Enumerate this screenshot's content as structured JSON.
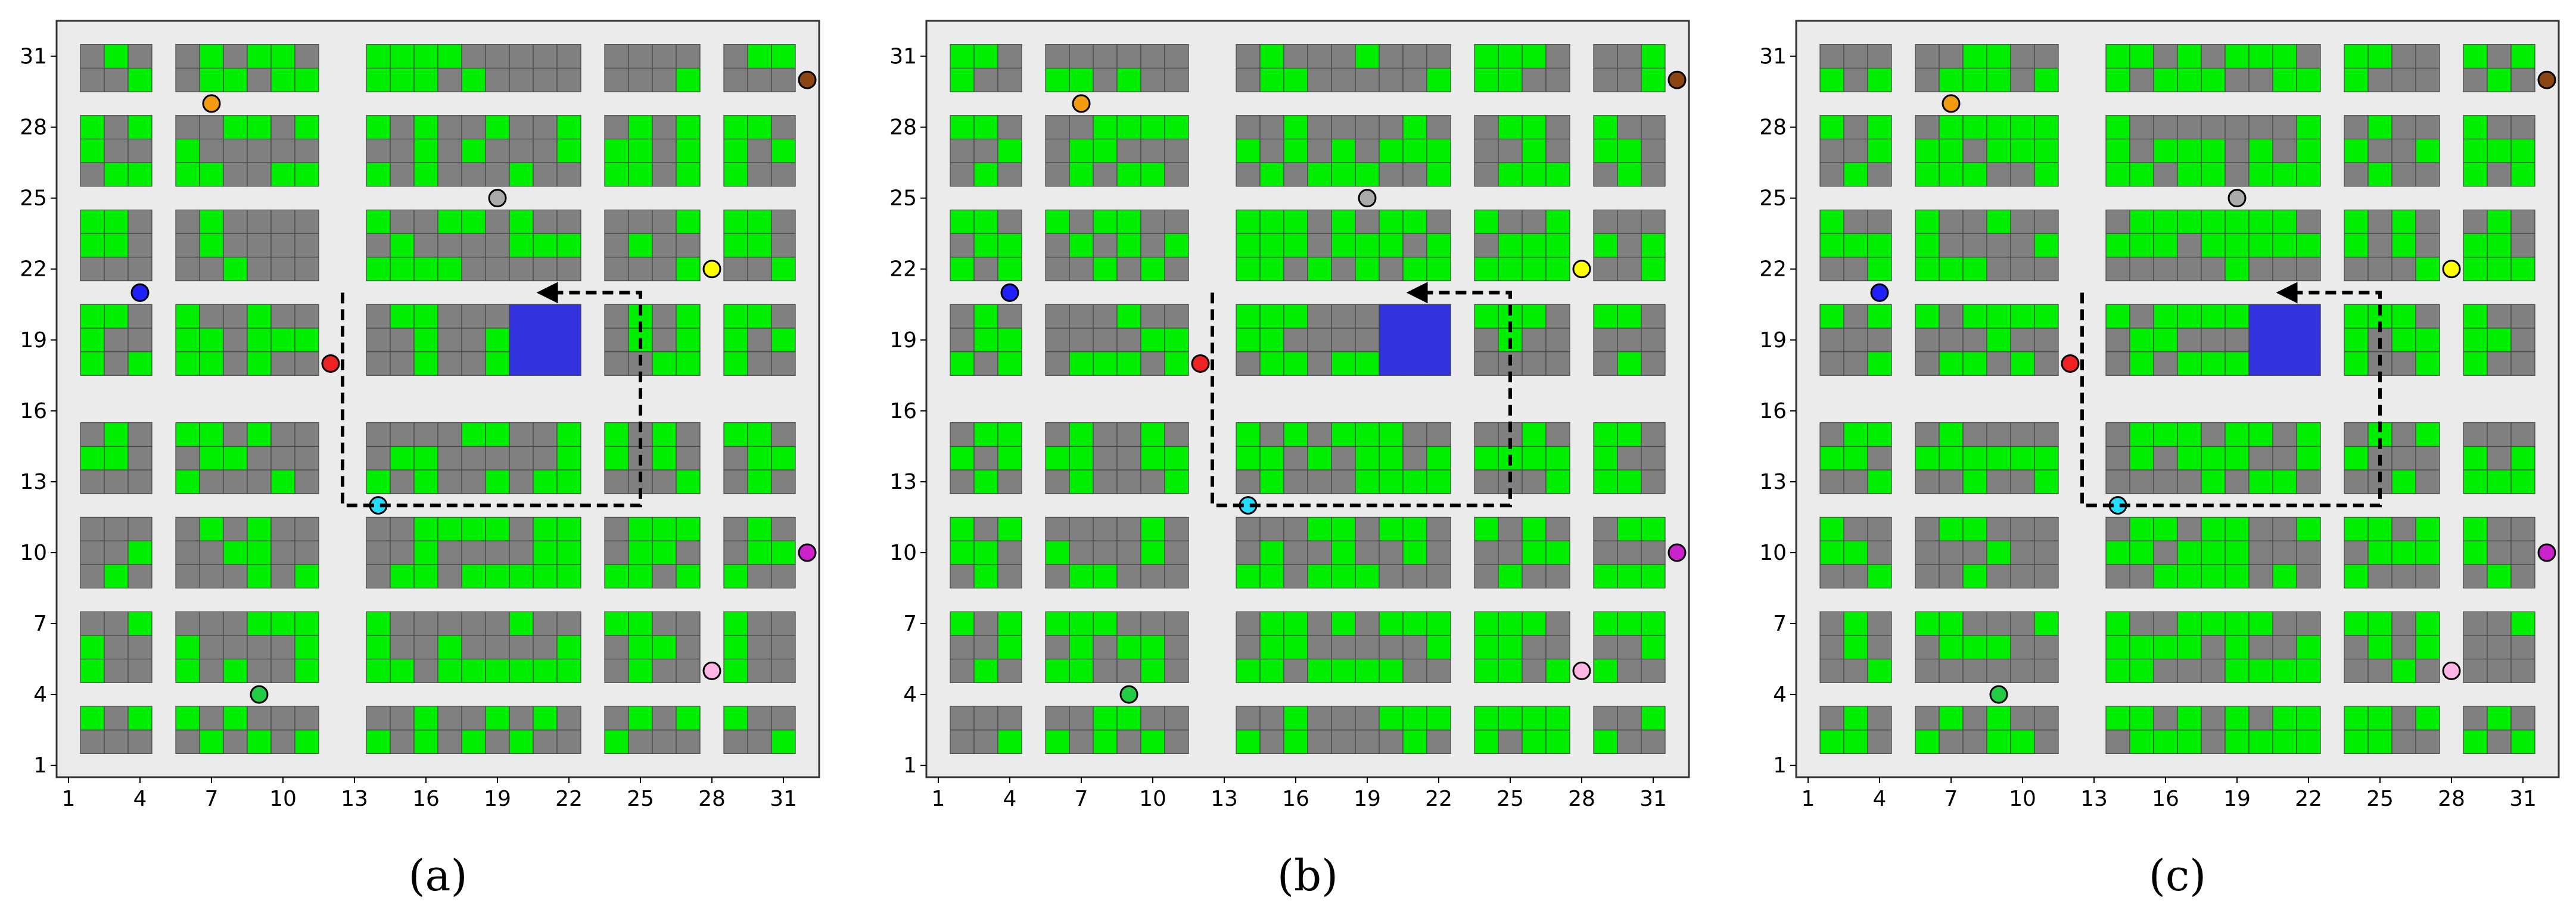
{
  "figure": {
    "panels": [
      {
        "caption": "(a)"
      },
      {
        "caption": "(b)"
      },
      {
        "caption": "(c)"
      }
    ],
    "x_ticks": [
      "1",
      "4",
      "7",
      "10",
      "13",
      "16",
      "19",
      "22",
      "25",
      "28",
      "31"
    ],
    "y_ticks": [
      "1",
      "4",
      "7",
      "10",
      "13",
      "16",
      "19",
      "22",
      "25",
      "28",
      "31"
    ],
    "colors": {
      "occupied": "#808080",
      "free": "#00ee00",
      "shared_zone": "#3333dd",
      "road": "#ebebeb",
      "path": "#000000"
    }
  }
}
